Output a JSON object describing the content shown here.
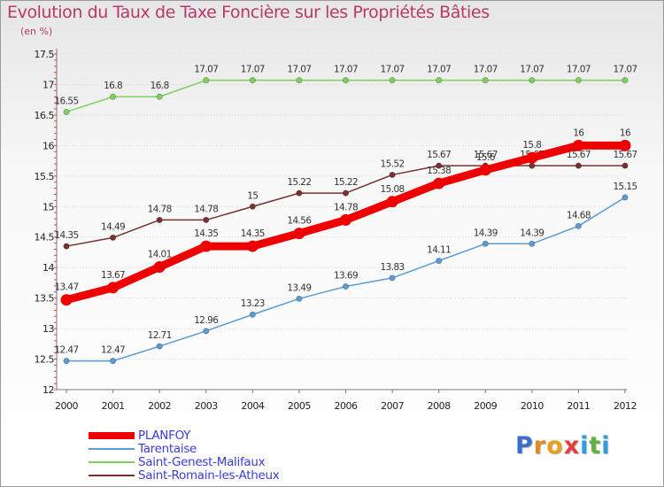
{
  "chart_data": {
    "type": "line",
    "title": "Evolution du Taux de Taxe Foncière sur les Propriétés Bâties",
    "ylabel": "(en %)",
    "xlabel": "",
    "ylim": [
      12,
      17.5
    ],
    "yticks": [
      12,
      12.5,
      13,
      13.5,
      14,
      14.5,
      15,
      15.5,
      16,
      16.5,
      17,
      17.5
    ],
    "x": [
      2000,
      2001,
      2002,
      2003,
      2004,
      2005,
      2006,
      2007,
      2008,
      2009,
      2010,
      2011,
      2012
    ],
    "grid": "horizontal",
    "legend_position": "bottom-left",
    "series": [
      {
        "name": "PLANFOY",
        "color": "#ee0000",
        "values": [
          13.47,
          13.67,
          14.01,
          14.35,
          14.35,
          14.56,
          14.78,
          15.08,
          15.38,
          15.6,
          15.8,
          16,
          16
        ],
        "labels": [
          "13.47",
          "13.67",
          "14.01",
          "14.35",
          "14.35",
          "14.56",
          "14.78",
          "15.08",
          "15.38",
          "15.6",
          "15.8",
          "16",
          "16"
        ]
      },
      {
        "name": "Tarentaise",
        "color": "#5b9bd5",
        "values": [
          12.47,
          12.47,
          12.71,
          12.96,
          13.23,
          13.49,
          13.69,
          13.83,
          14.11,
          14.39,
          14.39,
          14.68,
          15.15
        ],
        "labels": [
          "12.47",
          "12.47",
          "12.71",
          "12.96",
          "13.23",
          "13.49",
          "13.69",
          "13.83",
          "14.11",
          "14.39",
          "14.39",
          "14.68",
          "15.15"
        ]
      },
      {
        "name": "Saint-Genest-Malifaux",
        "color": "#80d060",
        "values": [
          16.55,
          16.8,
          16.8,
          17.07,
          17.07,
          17.07,
          17.07,
          17.07,
          17.07,
          17.07,
          17.07,
          17.07,
          17.07
        ],
        "labels": [
          "16.55",
          "16.8",
          "16.8",
          "17.07",
          "17.07",
          "17.07",
          "17.07",
          "17.07",
          "17.07",
          "17.07",
          "17.07",
          "17.07",
          "17.07"
        ]
      },
      {
        "name": "Saint-Romain-les-Atheux",
        "color": "#7a3030",
        "values": [
          14.35,
          14.49,
          14.78,
          14.78,
          15,
          15.22,
          15.22,
          15.52,
          15.67,
          15.67,
          15.67,
          15.67,
          15.67
        ],
        "labels": [
          "14.35",
          "14.49",
          "14.78",
          "14.78",
          "15",
          "15.22",
          "15.22",
          "15.52",
          "15.67",
          "15.67",
          "15.67",
          "15.67",
          "15.67"
        ]
      }
    ]
  },
  "logo": {
    "letters": [
      "P",
      "r",
      "o",
      "x",
      "i",
      "t",
      "i"
    ],
    "colors": [
      "#3a6fd0",
      "#e08a20",
      "#e8a020",
      "#e04040",
      "#2f9be0",
      "#60b040",
      "#2f9be0"
    ]
  }
}
